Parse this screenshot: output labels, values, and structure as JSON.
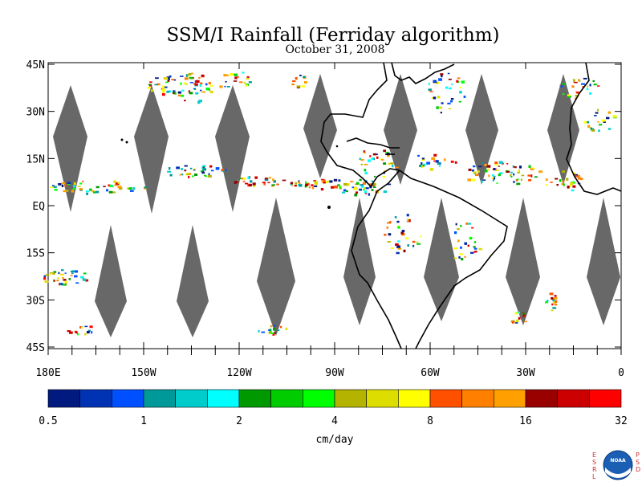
{
  "title": "SSM/I Rainfall (Ferriday algorithm)",
  "date": "October 31, 2008",
  "lat_labels": [
    "45N",
    "30N",
    "15N",
    "EQ",
    "15S",
    "30S",
    "45S"
  ],
  "lon_labels": [
    "180E",
    "150W",
    "120W",
    "90W",
    "60W",
    "30W",
    "0"
  ],
  "colorbar": {
    "colors": [
      "#001a80",
      "#0033b3",
      "#0050ff",
      "#00999a",
      "#00cccc",
      "#00ffff",
      "#009900",
      "#00cc00",
      "#00ff00",
      "#b3b300",
      "#dddd00",
      "#ffff00",
      "#ff5000",
      "#ff8000",
      "#ffa000",
      "#990000",
      "#cc0000",
      "#ff0000"
    ],
    "tick_labels": [
      "0.5",
      "1",
      "2",
      "4",
      "8",
      "16",
      "32"
    ],
    "unit": "cm/day"
  },
  "logo": {
    "left_letters": "ESRL",
    "right_letters": "PSD",
    "emblem": "NOAA"
  },
  "no_data_color": "#686868",
  "coast_color": "#000000"
}
